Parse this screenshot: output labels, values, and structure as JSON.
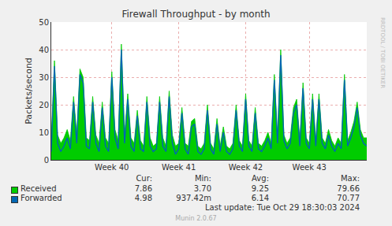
{
  "chart_data": {
    "type": "line",
    "title": "Firewall Throughput - by month",
    "y_label": "Packets/second",
    "categories": [
      null,
      null,
      null,
      null,
      null,
      null,
      null,
      null,
      null,
      null,
      null,
      null,
      null,
      null,
      null,
      null,
      null,
      null,
      null,
      "Week 40",
      null,
      null,
      null,
      null,
      null,
      null,
      null,
      null,
      null,
      null,
      null,
      null,
      null,
      null,
      null,
      null,
      null,
      null,
      null,
      null,
      "Week 41",
      null,
      null,
      null,
      null,
      null,
      null,
      null,
      null,
      null,
      null,
      null,
      null,
      null,
      null,
      null,
      null,
      null,
      null,
      null,
      null,
      "Week 42",
      null,
      null,
      null,
      null,
      null,
      null,
      null,
      null,
      null,
      null,
      null,
      null,
      null,
      null,
      null,
      null,
      null,
      null,
      null,
      "Week 43",
      null,
      null,
      null,
      null,
      null,
      null,
      null,
      null,
      null,
      null,
      null,
      null,
      null,
      null,
      null,
      null,
      null,
      null
    ],
    "series": [
      {
        "name": "Received",
        "color": "#00cc00",
        "type": "area",
        "values": [
          7,
          36,
          9,
          6,
          8,
          11,
          7,
          23,
          9,
          33,
          30,
          8,
          7,
          23,
          9,
          6,
          21,
          8,
          6,
          32,
          11,
          7,
          42,
          9,
          24,
          8,
          6,
          18,
          7,
          5,
          23,
          8,
          5,
          6,
          23,
          8,
          5,
          25,
          9,
          5,
          6,
          19,
          6,
          5,
          14,
          15,
          5,
          4,
          6,
          20,
          6,
          4,
          15,
          5,
          12,
          5,
          4,
          6,
          20,
          7,
          5,
          24,
          7,
          5,
          19,
          6,
          5,
          7,
          10,
          6,
          31,
          8,
          40,
          9,
          6,
          8,
          19,
          22,
          7,
          28,
          8,
          6,
          24,
          7,
          24,
          8,
          6,
          11,
          7,
          5,
          8,
          6,
          31,
          7,
          10,
          14,
          21,
          11,
          8,
          8
        ]
      },
      {
        "name": "Forwarded",
        "color": "#0066b3",
        "type": "line",
        "values": [
          3,
          34,
          6,
          3,
          5,
          8,
          4,
          21,
          6,
          31,
          28,
          5,
          4,
          21,
          6,
          3,
          19,
          5,
          3,
          30,
          8,
          4,
          40,
          6,
          22,
          5,
          3,
          16,
          4,
          3,
          21,
          5,
          3,
          4,
          21,
          5,
          3,
          23,
          6,
          2,
          4,
          17,
          4,
          2,
          12,
          13,
          3,
          2,
          4,
          18,
          4,
          2,
          13,
          3,
          10,
          3,
          2,
          4,
          18,
          5,
          3,
          22,
          5,
          3,
          17,
          4,
          3,
          5,
          8,
          4,
          29,
          6,
          38,
          7,
          4,
          6,
          17,
          20,
          5,
          26,
          6,
          4,
          22,
          5,
          22,
          6,
          4,
          9,
          5,
          3,
          6,
          4,
          29,
          5,
          8,
          12,
          19,
          9,
          6,
          5
        ]
      }
    ],
    "ylim": [
      0,
      50
    ],
    "yticks": [
      0,
      10,
      20,
      30,
      40,
      50
    ],
    "grid": true,
    "legend_table": {
      "headers": [
        "Cur:",
        "Min:",
        "Avg:",
        "Max:"
      ],
      "rows": [
        {
          "name": "Received",
          "values": [
            "7.86",
            "3.70",
            "9.25",
            "79.66"
          ]
        },
        {
          "name": "Forwarded",
          "values": [
            "4.98",
            "937.42m",
            "6.14",
            "70.77"
          ]
        }
      ]
    },
    "footer": "Last update: Tue Oct 29 18:30:03 2024",
    "credit": "Munin 2.0.67",
    "side_text": "RRDTOOL / TOBI OETIKER"
  }
}
